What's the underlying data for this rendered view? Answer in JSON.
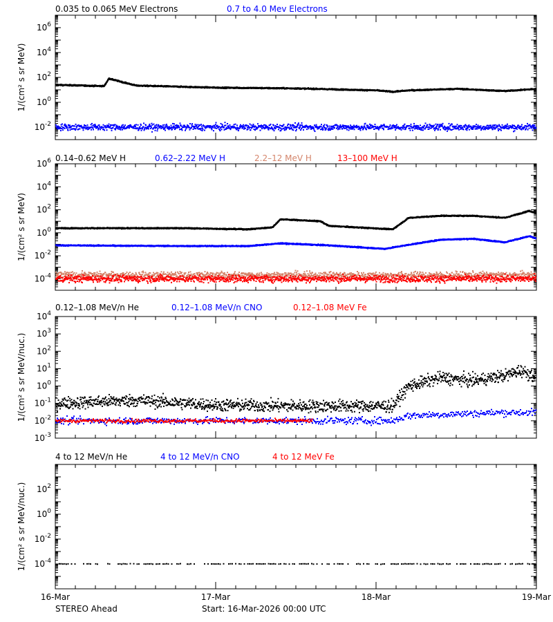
{
  "footer": {
    "spacecraft": "STEREO Ahead",
    "start": "Start: 16-Mar-2026 00:00 UTC"
  },
  "xaxis": {
    "ticks": [
      "16-Mar",
      "17-Mar",
      "18-Mar",
      "19-Mar"
    ]
  },
  "chart_data": [
    {
      "type": "scatter",
      "ylabel": "1/(cm² s sr MeV)",
      "log_y": true,
      "ylim_exp": [
        -3,
        7
      ],
      "ytick_exp": [
        -2,
        0,
        2,
        4,
        6
      ],
      "x_range_days": [
        0,
        3
      ],
      "series": [
        {
          "name": "0.035 to 0.065 MeV Electrons",
          "color": "#000000",
          "x": [
            0,
            0.3,
            0.33,
            0.5,
            1,
            1.5,
            2,
            2.1,
            2.2,
            2.5,
            2.8,
            3
          ],
          "y": [
            25,
            20,
            80,
            22,
            15,
            13,
            9,
            7,
            9,
            12,
            8,
            12
          ],
          "noise": 0.05,
          "density": 4
        },
        {
          "name": "0.7 to 4.0 Mev Electrons",
          "color": "#0000ff",
          "x": [
            0,
            3
          ],
          "y": [
            0.01,
            0.01
          ],
          "noise": 0.25,
          "density": 2
        }
      ]
    },
    {
      "type": "scatter",
      "ylabel": "1/(cm² s sr MeV)",
      "log_y": true,
      "ylim_exp": [
        -5,
        6
      ],
      "ytick_exp": [
        -4,
        -2,
        0,
        2,
        4,
        6
      ],
      "x_range_days": [
        0,
        3
      ],
      "series": [
        {
          "name": "0.14–0.62 MeV H",
          "color": "#000000",
          "x": [
            0,
            0.8,
            1.2,
            1.35,
            1.4,
            1.65,
            1.7,
            2.1,
            2.2,
            2.4,
            2.6,
            2.8,
            2.95,
            3
          ],
          "y": [
            2.5,
            2.5,
            2,
            3,
            15,
            10,
            4,
            2,
            20,
            30,
            30,
            20,
            80,
            50
          ],
          "noise": 0.05,
          "density": 4
        },
        {
          "name": "0.62–2.22 MeV H",
          "color": "#0000ff",
          "x": [
            0,
            0.8,
            1.2,
            1.4,
            1.7,
            2.05,
            2.2,
            2.4,
            2.6,
            2.8,
            2.95,
            3
          ],
          "y": [
            0.08,
            0.07,
            0.07,
            0.12,
            0.08,
            0.04,
            0.09,
            0.25,
            0.3,
            0.15,
            0.5,
            0.3
          ],
          "noise": 0.05,
          "density": 4
        },
        {
          "name": "2.2–12 MeV H",
          "color": "#d4846a",
          "x": [
            0,
            3
          ],
          "y": [
            0.0002,
            0.0002
          ],
          "noise": 0.3,
          "density": 2
        },
        {
          "name": "13–100 MeV H",
          "color": "#ff0000",
          "x": [
            0,
            3
          ],
          "y": [
            0.0001,
            0.0001
          ],
          "noise": 0.3,
          "density": 2
        }
      ]
    },
    {
      "type": "scatter",
      "ylabel": "1/(cm² s sr MeV/nuc.)",
      "log_y": true,
      "ylim_exp": [
        -3,
        4
      ],
      "ytick_exp": [
        -3,
        -2,
        -1,
        0,
        1,
        2,
        3,
        4
      ],
      "x_range_days": [
        0,
        3
      ],
      "series": [
        {
          "name": "0.12–1.08 MeV/n He",
          "color": "#000000",
          "x": [
            0,
            0.5,
            1.0,
            1.5,
            2.1,
            2.2,
            2.4,
            2.6,
            2.8,
            2.9,
            3
          ],
          "y": [
            0.1,
            0.15,
            0.08,
            0.07,
            0.07,
            1,
            3,
            2,
            4,
            8,
            3
          ],
          "noise": 0.35,
          "density": 2
        },
        {
          "name": "0.12–1.08 MeV/n CNO",
          "color": "#0000ff",
          "x": [
            0,
            2.1,
            2.2,
            2.8,
            3
          ],
          "y": [
            0.01,
            0.01,
            0.02,
            0.03,
            0.03
          ],
          "noise": 0.2,
          "density": 1
        },
        {
          "name": "0.12–1.08 MeV Fe",
          "color": "#ff0000",
          "x": [
            0,
            1.6
          ],
          "y": [
            0.01,
            0.01
          ],
          "noise": 0.1,
          "density": 1
        }
      ]
    },
    {
      "type": "scatter",
      "ylabel": "1/(cm² s sr MeV/nuc.)",
      "log_y": true,
      "ylim_exp": [
        -6,
        4
      ],
      "ytick_exp": [
        -4,
        -2,
        0,
        2
      ],
      "x_range_days": [
        0,
        3
      ],
      "series": [
        {
          "name": "4 to 12 MeV/n He",
          "color": "#000000",
          "x": [
            0,
            3
          ],
          "y": [
            0.0001,
            0.0001
          ],
          "noise": 0.02,
          "density": 0.4
        },
        {
          "name": "4 to 12 MeV/n CNO",
          "color": "#0000ff",
          "x": [],
          "y": [],
          "noise": 0,
          "density": 0
        },
        {
          "name": "4 to 12 MeV Fe",
          "color": "#ff0000",
          "x": [],
          "y": [],
          "noise": 0,
          "density": 0
        }
      ]
    }
  ]
}
